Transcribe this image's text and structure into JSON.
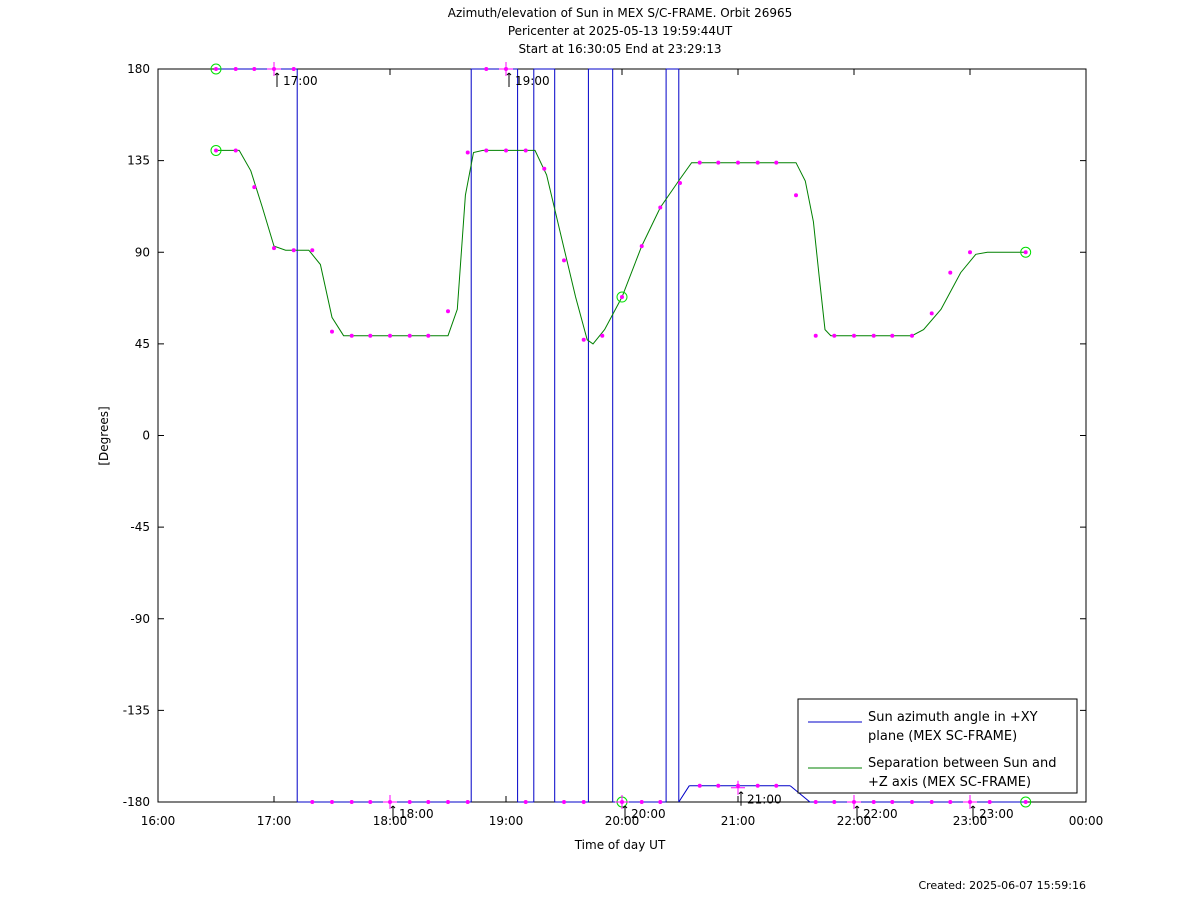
{
  "footer": {
    "created": "Created: 2025-06-07 15:59:16"
  },
  "chart_data": {
    "type": "line",
    "title": [
      "Azimuth/elevation of Sun in MEX S/C-FRAME.  Orbit 26965",
      "Pericenter at 2025-05-13 19:59:44UT",
      "Start at 16:30:05 End at 23:29:13"
    ],
    "xlabel": "Time of day UT",
    "ylabel": "[Degrees]",
    "xlim": [
      16.0,
      24.0
    ],
    "ylim": [
      -180,
      180
    ],
    "x_ticks": [
      16,
      17,
      18,
      19,
      20,
      21,
      22,
      23,
      24
    ],
    "x_tick_labels": [
      "16:00",
      "17:00",
      "18:00",
      "19:00",
      "20:00",
      "21:00",
      "22:00",
      "23:00",
      "00:00"
    ],
    "y_ticks": [
      180,
      135,
      90,
      45,
      0,
      -45,
      -90,
      -135,
      -180
    ],
    "y_tick_labels": [
      "180",
      "135",
      "90",
      "45",
      "0",
      "-45",
      "-90",
      "-135",
      "-180"
    ],
    "grid": false,
    "legend_position": "bottom-right",
    "hour_marks": [
      {
        "x": 17.0,
        "y": 180,
        "label": "17:00"
      },
      {
        "x": 18.0,
        "y": -180,
        "label": "18:00"
      },
      {
        "x": 19.0,
        "y": 180,
        "label": "19:00"
      },
      {
        "x": 20.0,
        "y": -180,
        "label": "20:00"
      },
      {
        "x": 21.0,
        "y": -173,
        "label": "21:00"
      },
      {
        "x": 22.0,
        "y": -180,
        "label": "22:00"
      },
      {
        "x": 23.0,
        "y": -180,
        "label": "23:00"
      }
    ],
    "series": [
      {
        "name": "Sun azimuth angle in +XY plane (MEX SC-FRAME)",
        "legend_lines": [
          "Sun azimuth angle in +XY",
          "plane (MEX SC-FRAME)"
        ],
        "color": "#0000c8",
        "segments": [
          [
            [
              16.5,
              180
            ],
            [
              17.2,
              180
            ]
          ],
          [
            [
              17.2,
              180
            ],
            [
              17.2,
              -180
            ]
          ],
          [
            [
              17.2,
              -180
            ],
            [
              18.7,
              -180
            ]
          ],
          [
            [
              18.7,
              -180
            ],
            [
              18.7,
              180
            ]
          ],
          [
            [
              18.7,
              180
            ],
            [
              19.1,
              180
            ]
          ],
          [
            [
              19.1,
              180
            ],
            [
              19.1,
              -180
            ]
          ],
          [
            [
              19.1,
              -180
            ],
            [
              19.24,
              -180
            ]
          ],
          [
            [
              19.24,
              -180
            ],
            [
              19.24,
              180
            ]
          ],
          [
            [
              19.24,
              180
            ],
            [
              19.42,
              180
            ]
          ],
          [
            [
              19.42,
              180
            ],
            [
              19.42,
              -180
            ]
          ],
          [
            [
              19.42,
              -180
            ],
            [
              19.71,
              -180
            ]
          ],
          [
            [
              19.71,
              -180
            ],
            [
              19.71,
              180
            ]
          ],
          [
            [
              19.71,
              180
            ],
            [
              19.92,
              180
            ]
          ],
          [
            [
              19.92,
              180
            ],
            [
              19.92,
              -180
            ]
          ],
          [
            [
              19.92,
              -180
            ],
            [
              20.38,
              -180
            ]
          ],
          [
            [
              20.38,
              -180
            ],
            [
              20.38,
              180
            ]
          ],
          [
            [
              20.38,
              180
            ],
            [
              20.49,
              180
            ]
          ],
          [
            [
              20.49,
              180
            ],
            [
              20.49,
              -180
            ]
          ],
          [
            [
              20.49,
              -180
            ],
            [
              20.58,
              -172
            ]
          ],
          [
            [
              20.58,
              -172
            ],
            [
              21.45,
              -172
            ]
          ],
          [
            [
              21.45,
              -172
            ],
            [
              21.62,
              -180
            ]
          ],
          [
            [
              21.62,
              -180
            ],
            [
              23.48,
              -180
            ]
          ]
        ],
        "markers": [
          [
            16.5,
            180
          ],
          [
            16.67,
            180
          ],
          [
            16.83,
            180
          ],
          [
            17.0,
            180
          ],
          [
            17.17,
            180
          ],
          [
            17.33,
            -180
          ],
          [
            17.5,
            -180
          ],
          [
            17.67,
            -180
          ],
          [
            17.83,
            -180
          ],
          [
            18.0,
            -180
          ],
          [
            18.17,
            -180
          ],
          [
            18.33,
            -180
          ],
          [
            18.5,
            -180
          ],
          [
            18.67,
            -180
          ],
          [
            18.83,
            180
          ],
          [
            19.0,
            180
          ],
          [
            19.17,
            -180
          ],
          [
            19.5,
            -180
          ],
          [
            19.67,
            -180
          ],
          [
            20.0,
            -180
          ],
          [
            20.17,
            -180
          ],
          [
            20.33,
            -180
          ],
          [
            20.67,
            -172
          ],
          [
            20.83,
            -172
          ],
          [
            21.0,
            -172
          ],
          [
            21.17,
            -172
          ],
          [
            21.33,
            -172
          ],
          [
            21.67,
            -180
          ],
          [
            21.83,
            -180
          ],
          [
            22.0,
            -180
          ],
          [
            22.17,
            -180
          ],
          [
            22.33,
            -180
          ],
          [
            22.5,
            -180
          ],
          [
            22.67,
            -180
          ],
          [
            22.83,
            -180
          ],
          [
            23.0,
            -180
          ],
          [
            23.17,
            -180
          ],
          [
            23.48,
            -180
          ]
        ]
      },
      {
        "name": "Separation between Sun and +Z axis (MEX SC-FRAME)",
        "legend_lines": [
          "Separation between Sun and",
          "+Z axis (MEX SC-FRAME)"
        ],
        "color": "#008000",
        "points": [
          [
            16.5,
            140
          ],
          [
            16.7,
            140
          ],
          [
            16.8,
            130
          ],
          [
            16.9,
            112
          ],
          [
            17.0,
            93
          ],
          [
            17.1,
            91
          ],
          [
            17.3,
            91
          ],
          [
            17.4,
            84
          ],
          [
            17.5,
            58
          ],
          [
            17.6,
            49
          ],
          [
            18.5,
            49
          ],
          [
            18.58,
            62
          ],
          [
            18.65,
            118
          ],
          [
            18.72,
            139
          ],
          [
            18.8,
            140
          ],
          [
            19.25,
            140
          ],
          [
            19.35,
            128
          ],
          [
            19.5,
            92
          ],
          [
            19.6,
            68
          ],
          [
            19.7,
            47
          ],
          [
            19.75,
            45
          ],
          [
            19.85,
            52
          ],
          [
            20.0,
            68
          ],
          [
            20.17,
            93
          ],
          [
            20.33,
            112
          ],
          [
            20.5,
            126
          ],
          [
            20.6,
            134
          ],
          [
            20.75,
            134
          ],
          [
            21.5,
            134
          ],
          [
            21.58,
            125
          ],
          [
            21.65,
            105
          ],
          [
            21.7,
            78
          ],
          [
            21.75,
            52
          ],
          [
            21.8,
            49
          ],
          [
            22.5,
            49
          ],
          [
            22.6,
            52
          ],
          [
            22.75,
            62
          ],
          [
            22.92,
            80
          ],
          [
            23.05,
            89
          ],
          [
            23.15,
            90
          ],
          [
            23.48,
            90
          ]
        ],
        "markers": [
          [
            16.5,
            140
          ],
          [
            16.67,
            140
          ],
          [
            16.83,
            122
          ],
          [
            17.0,
            92
          ],
          [
            17.17,
            91
          ],
          [
            17.33,
            91
          ],
          [
            17.5,
            51
          ],
          [
            17.67,
            49
          ],
          [
            17.83,
            49
          ],
          [
            18.0,
            49
          ],
          [
            18.17,
            49
          ],
          [
            18.33,
            49
          ],
          [
            18.5,
            61
          ],
          [
            18.67,
            139
          ],
          [
            18.83,
            140
          ],
          [
            19.0,
            140
          ],
          [
            19.17,
            140
          ],
          [
            19.33,
            131
          ],
          [
            19.5,
            86
          ],
          [
            19.67,
            47
          ],
          [
            19.83,
            49
          ],
          [
            20.0,
            68
          ],
          [
            20.17,
            93
          ],
          [
            20.33,
            112
          ],
          [
            20.5,
            124
          ],
          [
            20.67,
            134
          ],
          [
            20.83,
            134
          ],
          [
            21.0,
            134
          ],
          [
            21.17,
            134
          ],
          [
            21.33,
            134
          ],
          [
            21.5,
            118
          ],
          [
            21.67,
            49
          ],
          [
            21.83,
            49
          ],
          [
            22.0,
            49
          ],
          [
            22.17,
            49
          ],
          [
            22.33,
            49
          ],
          [
            22.5,
            49
          ],
          [
            22.67,
            60
          ],
          [
            22.83,
            80
          ],
          [
            23.0,
            90
          ],
          [
            23.48,
            90
          ]
        ]
      }
    ],
    "circle_markers": [
      [
        16.5,
        180
      ],
      [
        16.5,
        140
      ],
      [
        20.0,
        68
      ],
      [
        20.0,
        -180
      ],
      [
        23.48,
        90
      ],
      [
        23.48,
        -180
      ]
    ],
    "marker_color": "#ff00ff",
    "circle_color": "#00dd00"
  }
}
